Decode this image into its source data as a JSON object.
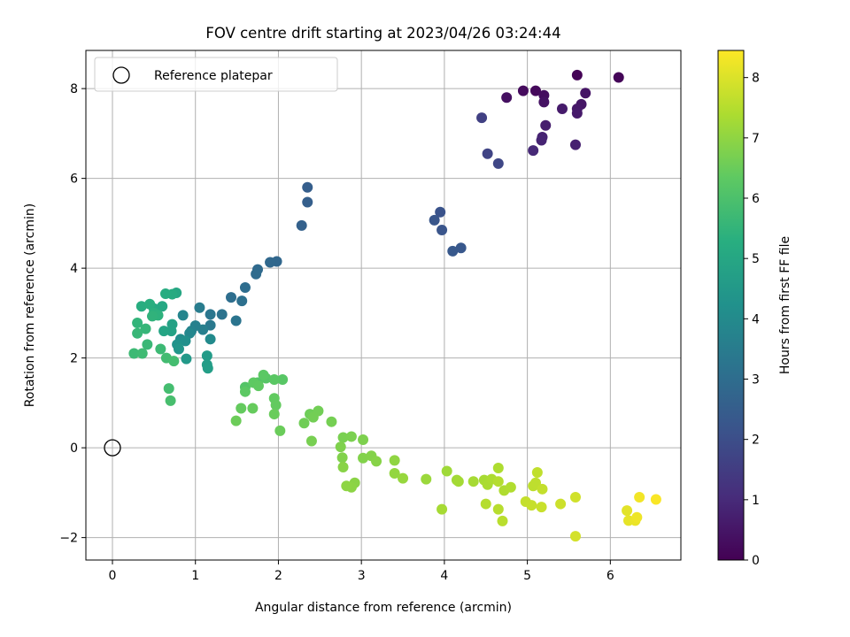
{
  "chart_data": {
    "type": "scatter",
    "title": "FOV centre drift starting at 2023/04/26 03:24:44",
    "xlabel": "Angular distance from reference (arcmin)",
    "ylabel": "Rotation from reference (arcmin)",
    "xlim": [
      -0.32,
      6.85
    ],
    "ylim": [
      -2.5,
      8.85
    ],
    "xticks": [
      0,
      1,
      2,
      3,
      4,
      5,
      6
    ],
    "yticks": [
      -2,
      0,
      2,
      4,
      6,
      8
    ],
    "grid": true,
    "legend": {
      "placement": "top-left",
      "entries": [
        "Reference platepar"
      ]
    },
    "reference_point": {
      "x": 0,
      "y": 0
    },
    "colorbar": {
      "label": "Hours from first FF file",
      "range": [
        0,
        8.45
      ],
      "ticks": [
        0,
        1,
        2,
        3,
        4,
        5,
        6,
        7,
        8
      ],
      "colormap": "viridis"
    },
    "points": [
      [
        5.6,
        8.3,
        0.05
      ],
      [
        6.1,
        8.25,
        0.1
      ],
      [
        5.1,
        7.95,
        0.2
      ],
      [
        4.95,
        7.95,
        0.25
      ],
      [
        5.2,
        7.85,
        0.3
      ],
      [
        4.75,
        7.8,
        0.35
      ],
      [
        5.2,
        7.7,
        0.4
      ],
      [
        5.7,
        7.9,
        0.45
      ],
      [
        5.65,
        7.65,
        0.5
      ],
      [
        5.6,
        7.55,
        0.55
      ],
      [
        5.6,
        7.45,
        0.6
      ],
      [
        5.42,
        7.55,
        0.62
      ],
      [
        5.22,
        7.18,
        0.7
      ],
      [
        5.18,
        6.92,
        0.8
      ],
      [
        5.17,
        6.85,
        0.85
      ],
      [
        5.58,
        6.75,
        0.75
      ],
      [
        5.07,
        6.62,
        0.95
      ],
      [
        4.45,
        7.35,
        1.6
      ],
      [
        4.65,
        6.33,
        1.8
      ],
      [
        4.52,
        6.55,
        1.7
      ],
      [
        3.95,
        5.25,
        2.15
      ],
      [
        3.97,
        4.85,
        2.2
      ],
      [
        3.88,
        5.07,
        2.25
      ],
      [
        4.2,
        4.45,
        2.3
      ],
      [
        4.1,
        4.38,
        2.35
      ],
      [
        2.35,
        5.8,
        2.5
      ],
      [
        2.35,
        5.47,
        2.55
      ],
      [
        2.28,
        4.95,
        2.6
      ],
      [
        1.98,
        4.15,
        2.8
      ],
      [
        1.9,
        4.13,
        2.85
      ],
      [
        1.75,
        3.97,
        2.9
      ],
      [
        1.73,
        3.87,
        2.95
      ],
      [
        1.6,
        3.57,
        3.0
      ],
      [
        1.43,
        3.35,
        3.05
      ],
      [
        1.56,
        3.27,
        3.1
      ],
      [
        1.32,
        2.97,
        3.2
      ],
      [
        1.49,
        2.83,
        3.25
      ],
      [
        1.18,
        2.97,
        3.3
      ],
      [
        1.18,
        2.73,
        3.4
      ],
      [
        1.05,
        3.12,
        3.5
      ],
      [
        1.09,
        2.63,
        3.6
      ],
      [
        1.0,
        2.72,
        3.65
      ],
      [
        0.95,
        2.6,
        3.7
      ],
      [
        0.85,
        2.95,
        3.8
      ],
      [
        0.93,
        2.55,
        3.9
      ],
      [
        1.18,
        2.42,
        4.0
      ],
      [
        0.82,
        2.42,
        4.1
      ],
      [
        0.88,
        2.38,
        4.2
      ],
      [
        0.78,
        2.3,
        4.3
      ],
      [
        0.8,
        2.2,
        4.4
      ],
      [
        0.89,
        1.98,
        4.5
      ],
      [
        1.14,
        2.05,
        4.6
      ],
      [
        1.14,
        1.85,
        4.65
      ],
      [
        1.15,
        1.77,
        4.7
      ],
      [
        0.72,
        2.75,
        4.8
      ],
      [
        0.71,
        2.6,
        4.85
      ],
      [
        0.62,
        2.6,
        4.9
      ],
      [
        0.77,
        3.45,
        5.0
      ],
      [
        0.6,
        3.15,
        5.05
      ],
      [
        0.5,
        3.1,
        5.1
      ],
      [
        0.72,
        3.42,
        5.15
      ],
      [
        0.64,
        3.43,
        5.2
      ],
      [
        0.35,
        3.15,
        5.25
      ],
      [
        0.45,
        3.2,
        5.3
      ],
      [
        0.5,
        3.0,
        5.35
      ],
      [
        0.55,
        2.95,
        5.4
      ],
      [
        0.48,
        2.93,
        5.45
      ],
      [
        0.3,
        2.78,
        5.5
      ],
      [
        0.4,
        2.65,
        5.55
      ],
      [
        0.3,
        2.55,
        5.6
      ],
      [
        0.42,
        2.3,
        5.65
      ],
      [
        0.58,
        2.2,
        5.7
      ],
      [
        0.26,
        2.1,
        5.7
      ],
      [
        0.36,
        2.1,
        5.75
      ],
      [
        0.65,
        2.0,
        5.8
      ],
      [
        0.74,
        1.93,
        5.85
      ],
      [
        0.68,
        1.32,
        5.85
      ],
      [
        0.7,
        1.05,
        5.9
      ],
      [
        1.75,
        1.45,
        6.1
      ],
      [
        1.6,
        1.35,
        6.15
      ],
      [
        1.85,
        1.55,
        6.2
      ],
      [
        2.05,
        1.52,
        6.22
      ],
      [
        1.95,
        1.52,
        6.25
      ],
      [
        1.82,
        1.62,
        6.28
      ],
      [
        1.6,
        1.25,
        6.3
      ],
      [
        1.7,
        1.45,
        6.32
      ],
      [
        1.76,
        1.38,
        6.35
      ],
      [
        1.95,
        1.1,
        6.38
      ],
      [
        1.97,
        0.95,
        6.4
      ],
      [
        1.55,
        0.88,
        6.42
      ],
      [
        1.69,
        0.88,
        6.45
      ],
      [
        1.95,
        0.75,
        6.48
      ],
      [
        2.02,
        0.38,
        6.5
      ],
      [
        1.49,
        0.6,
        6.52
      ],
      [
        2.38,
        0.75,
        6.55
      ],
      [
        2.31,
        0.55,
        6.58
      ],
      [
        2.48,
        0.82,
        6.6
      ],
      [
        2.42,
        0.68,
        6.62
      ],
      [
        2.64,
        0.58,
        6.65
      ],
      [
        2.4,
        0.15,
        6.68
      ],
      [
        2.78,
        0.23,
        6.7
      ],
      [
        2.88,
        0.25,
        6.72
      ],
      [
        3.02,
        0.18,
        6.75
      ],
      [
        2.75,
        0.02,
        6.78
      ],
      [
        2.77,
        -0.22,
        6.8
      ],
      [
        3.02,
        -0.23,
        6.82
      ],
      [
        3.12,
        -0.18,
        6.85
      ],
      [
        3.18,
        -0.3,
        6.88
      ],
      [
        2.78,
        -0.43,
        6.9
      ],
      [
        2.92,
        -0.78,
        6.92
      ],
      [
        2.88,
        -0.88,
        6.95
      ],
      [
        2.82,
        -0.85,
        6.98
      ],
      [
        3.4,
        -0.28,
        7.0
      ],
      [
        3.4,
        -0.57,
        7.05
      ],
      [
        3.5,
        -0.68,
        7.1
      ],
      [
        3.78,
        -0.7,
        7.15
      ],
      [
        4.03,
        -0.52,
        7.2
      ],
      [
        4.15,
        -0.72,
        7.25
      ],
      [
        4.17,
        -0.75,
        7.28
      ],
      [
        4.35,
        -0.75,
        7.3
      ],
      [
        4.48,
        -0.72,
        7.32
      ],
      [
        4.52,
        -0.82,
        7.35
      ],
      [
        4.57,
        -0.7,
        7.38
      ],
      [
        4.65,
        -0.45,
        7.4
      ],
      [
        4.72,
        -0.95,
        7.42
      ],
      [
        4.8,
        -0.88,
        7.45
      ],
      [
        4.65,
        -0.75,
        7.48
      ],
      [
        4.5,
        -1.25,
        7.5
      ],
      [
        4.65,
        -1.37,
        7.52
      ],
      [
        4.7,
        -1.63,
        7.55
      ],
      [
        3.97,
        -1.37,
        7.3
      ],
      [
        5.07,
        -0.85,
        7.6
      ],
      [
        5.1,
        -0.78,
        7.62
      ],
      [
        5.12,
        -0.55,
        7.65
      ],
      [
        5.18,
        -0.92,
        7.68
      ],
      [
        4.98,
        -1.2,
        7.7
      ],
      [
        5.05,
        -1.28,
        7.72
      ],
      [
        5.17,
        -1.32,
        7.75
      ],
      [
        5.4,
        -1.25,
        7.8
      ],
      [
        5.58,
        -1.1,
        7.85
      ],
      [
        5.58,
        -1.97,
        7.9
      ],
      [
        6.2,
        -1.4,
        8.1
      ],
      [
        6.22,
        -1.62,
        8.15
      ],
      [
        6.3,
        -1.62,
        8.2
      ],
      [
        6.32,
        -1.55,
        8.25
      ],
      [
        6.35,
        -1.1,
        8.3
      ],
      [
        6.55,
        -1.15,
        8.4
      ]
    ]
  }
}
